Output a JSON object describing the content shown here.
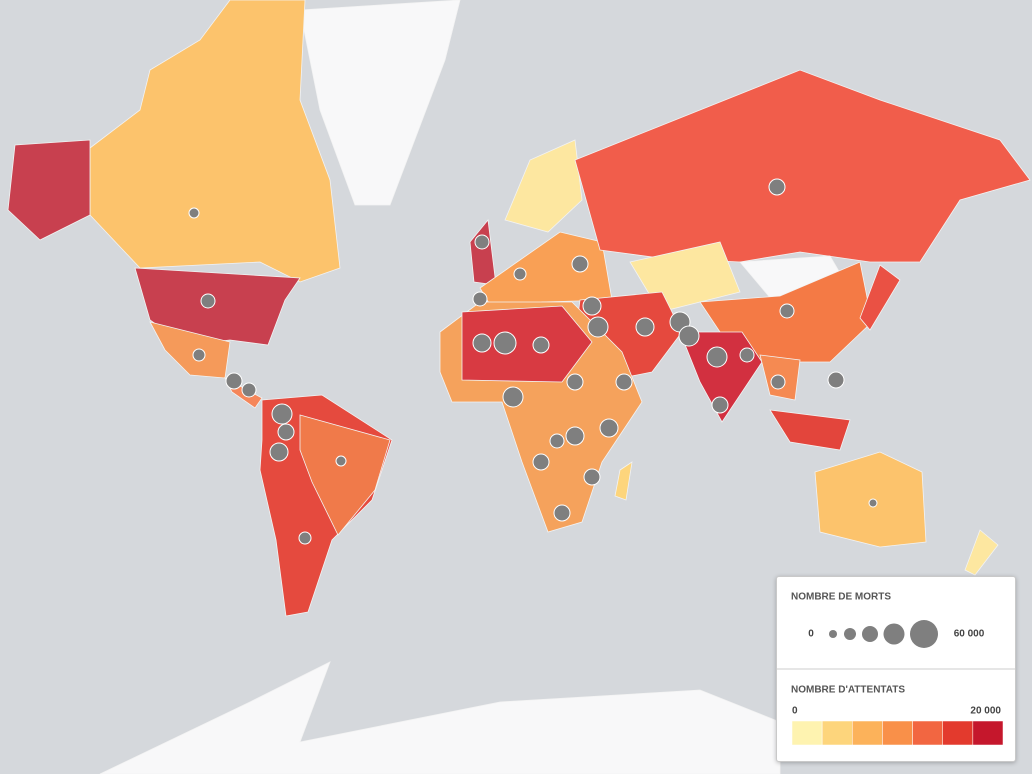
{
  "legend": {
    "deaths": {
      "title": "NOMBRE DE MORTS",
      "min_label": "0",
      "max_label": "60 000"
    },
    "attacks": {
      "title": "NOMBRE D'ATTENTATS",
      "min_label": "0",
      "max_label": "20 000",
      "colors": [
        "#fef3b0",
        "#fdd57c",
        "#fcb25a",
        "#f99049",
        "#f26641",
        "#e33a2d",
        "#c5172c"
      ]
    }
  }
}
